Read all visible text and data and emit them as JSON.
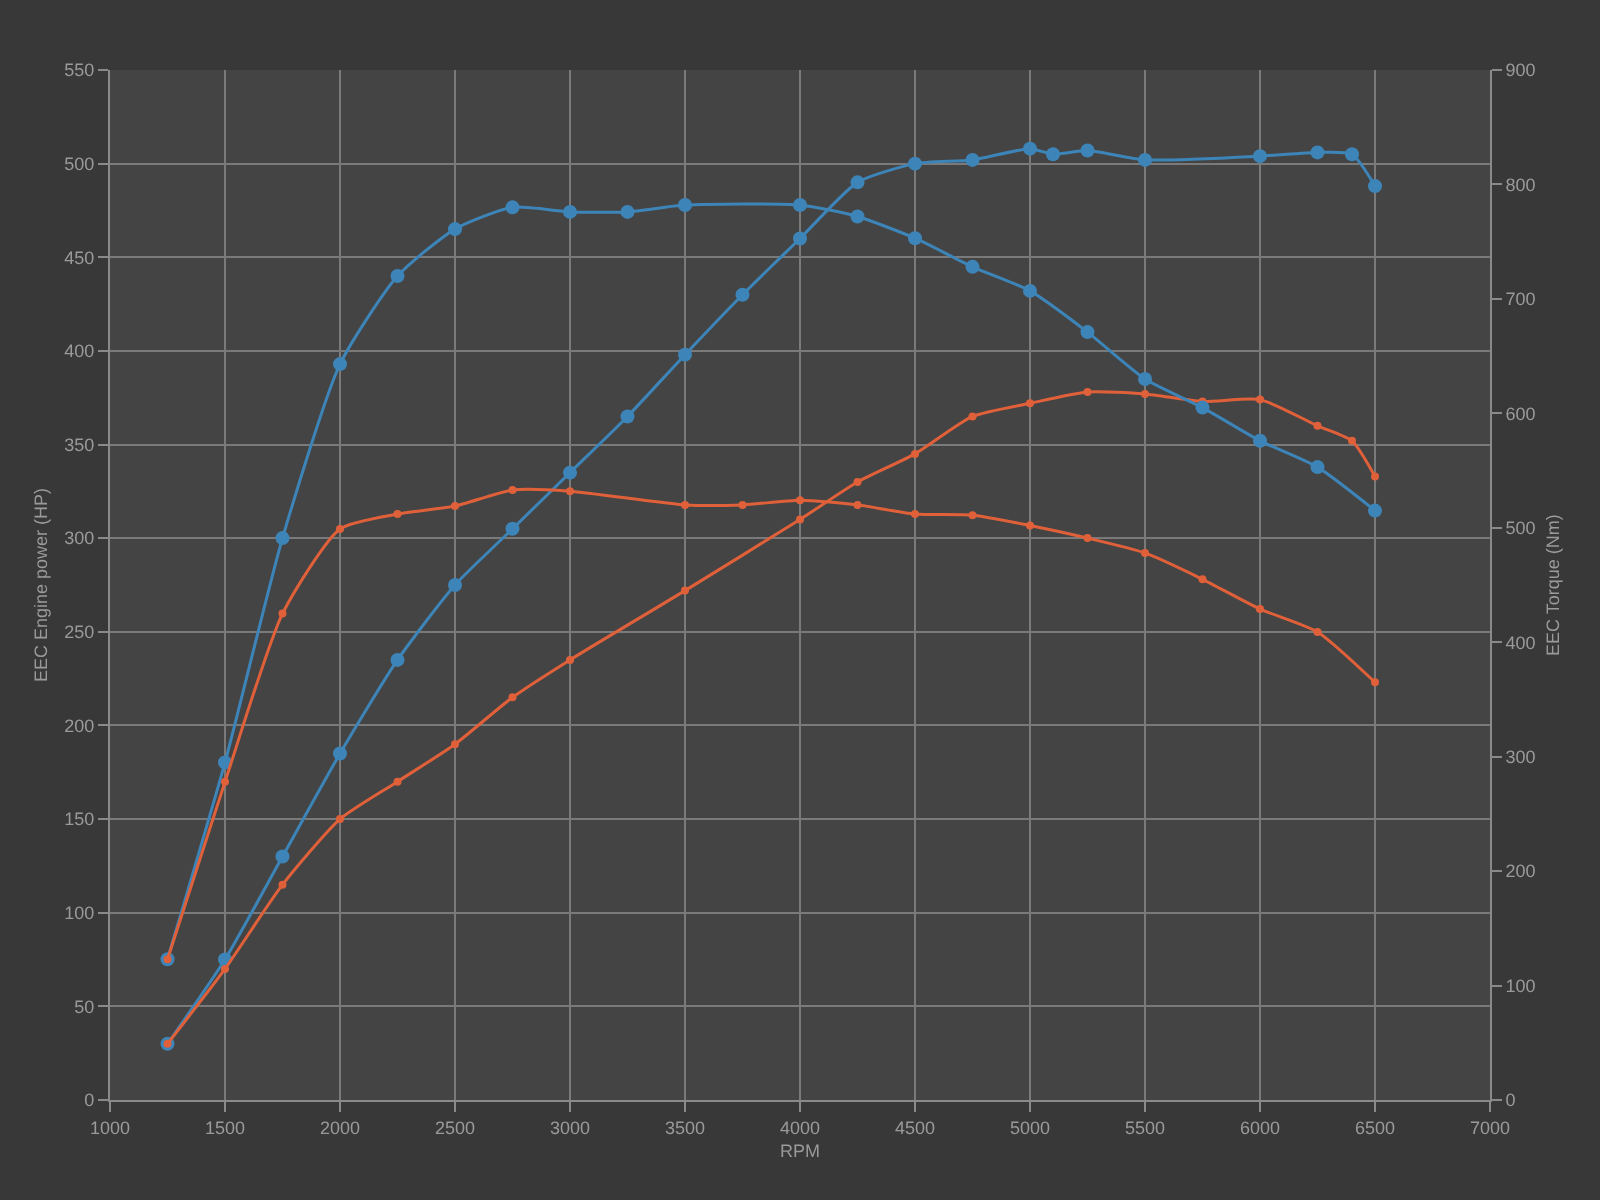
{
  "chart_data": {
    "type": "line",
    "xlabel": "RPM",
    "ylabel": "EEC Engine power (HP)",
    "y2label": "EEC Torque (Nm)",
    "xlim": [
      1000,
      7000
    ],
    "xticks": [
      1000,
      1500,
      2000,
      2500,
      3000,
      3500,
      4000,
      4500,
      5000,
      5500,
      6000,
      6500,
      7000
    ],
    "ylim": [
      0,
      550
    ],
    "yticks": [
      0,
      50,
      100,
      150,
      200,
      250,
      300,
      350,
      400,
      450,
      500,
      550
    ],
    "y2lim": [
      0,
      900
    ],
    "y2ticks": [
      0,
      100,
      200,
      300,
      400,
      500,
      600,
      700,
      800,
      900
    ],
    "grid": true,
    "marker": "circle",
    "line_style": "solid",
    "series": [
      {
        "color": "#3d85b8",
        "x": [
          1250,
          1500,
          1750,
          2000,
          2250,
          2500,
          2750,
          3000,
          3250,
          3500,
          3750,
          4000,
          4250,
          4500,
          4750,
          5000,
          5100,
          5250,
          5500,
          6000,
          6250,
          6400,
          6500
        ],
        "values": [
          30,
          75,
          130,
          185,
          235,
          275,
          305,
          335,
          365,
          398,
          430,
          460,
          490,
          500,
          502,
          508,
          505,
          507,
          502,
          504,
          506,
          505,
          488
        ]
      },
      {
        "color": "#e0603a",
        "x": [
          1250,
          1500,
          1750,
          2000,
          2250,
          2500,
          2750,
          3000,
          3500,
          4000,
          4250,
          4500,
          4750,
          5000,
          5250,
          5500,
          5750,
          6000,
          6250,
          6400,
          6500
        ],
        "values": [
          30,
          70,
          115,
          150,
          170,
          190,
          215,
          235,
          272,
          310,
          330,
          345,
          365,
          372,
          378,
          377,
          373,
          374,
          360,
          352,
          333
        ]
      },
      {
        "color": "#3d85b8",
        "axis": "y2",
        "x": [
          1250,
          1500,
          1750,
          2000,
          2250,
          2500,
          2750,
          3000,
          3250,
          3500,
          4000,
          4250,
          4500,
          4750,
          5000,
          5250,
          5500,
          5750,
          6000,
          6250,
          6500
        ],
        "values": [
          123,
          295,
          491,
          643,
          720,
          761,
          780,
          776,
          776,
          782,
          782,
          772,
          753,
          728,
          707,
          671,
          630,
          605,
          576,
          553,
          515
        ]
      },
      {
        "color": "#e0603a",
        "axis": "y2",
        "x": [
          1250,
          1500,
          1750,
          2000,
          2250,
          2500,
          2750,
          3000,
          3500,
          3750,
          4000,
          4250,
          4500,
          4750,
          5000,
          5250,
          5500,
          5750,
          6000,
          6250,
          6500
        ],
        "values": [
          123,
          278,
          425,
          499,
          512,
          519,
          533,
          532,
          520,
          520,
          524,
          520,
          512,
          511,
          502,
          491,
          478,
          455,
          429,
          409,
          365
        ]
      }
    ]
  }
}
